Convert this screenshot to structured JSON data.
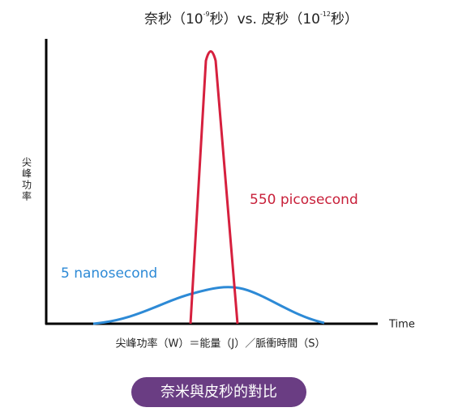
{
  "title": {
    "part1": "奈秒（10",
    "exp1": "-9",
    "part2": "秒）vs. 皮秒（10",
    "exp2": "-12",
    "part3": "秒）"
  },
  "y_axis_label": "尖峰功率",
  "x_axis_label": "Time",
  "labels": {
    "picosecond": "550 picosecond",
    "nanosecond": "5 nanosecond"
  },
  "formula": "尖峰功率（W）＝能量（J）／脈衝時間（S）",
  "button": "奈米與皮秒的對比"
}
